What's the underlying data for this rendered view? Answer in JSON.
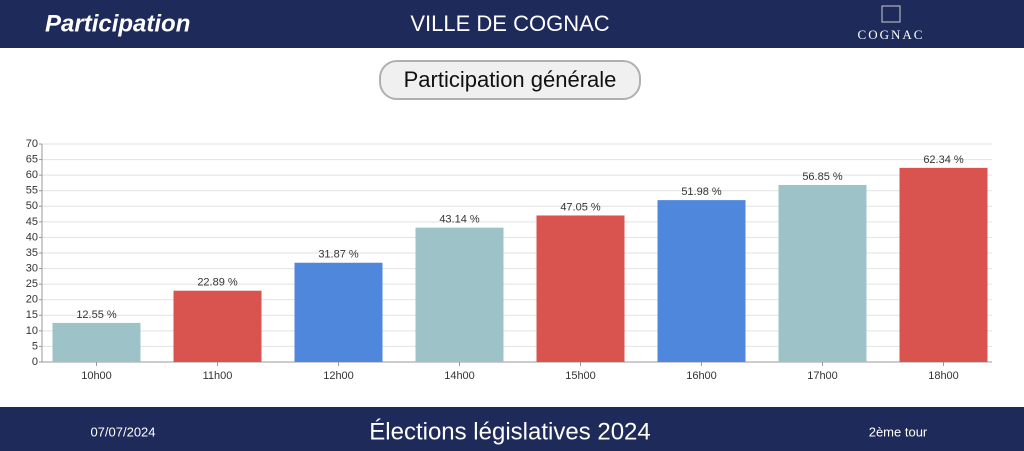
{
  "header": {
    "section": "Participation",
    "city": "VILLE DE COGNAC",
    "logo": "COGNAC"
  },
  "chart_data": {
    "type": "bar",
    "title": "Participation générale",
    "categories": [
      "10h00",
      "11h00",
      "12h00",
      "14h00",
      "15h00",
      "16h00",
      "17h00",
      "18h00"
    ],
    "values": [
      12.55,
      22.89,
      31.87,
      43.14,
      47.05,
      51.98,
      56.85,
      62.34
    ],
    "value_labels": [
      "12.55 %",
      "22.89 %",
      "31.87 %",
      "43.14 %",
      "47.05 %",
      "51.98 %",
      "56.85 %",
      "62.34 %"
    ],
    "colors": [
      "#9dc3c8",
      "#d9534f",
      "#4f87dd",
      "#9dc3c8",
      "#d9534f",
      "#4f87dd",
      "#9dc3c8",
      "#d9534f"
    ],
    "ylim": [
      0,
      70
    ],
    "yticks": [
      0,
      5,
      10,
      15,
      20,
      25,
      30,
      35,
      40,
      45,
      50,
      55,
      60,
      65,
      70
    ],
    "grid": true
  },
  "footer": {
    "date": "07/07/2024",
    "election": "Élections législatives 2024",
    "round": "2ème tour"
  }
}
